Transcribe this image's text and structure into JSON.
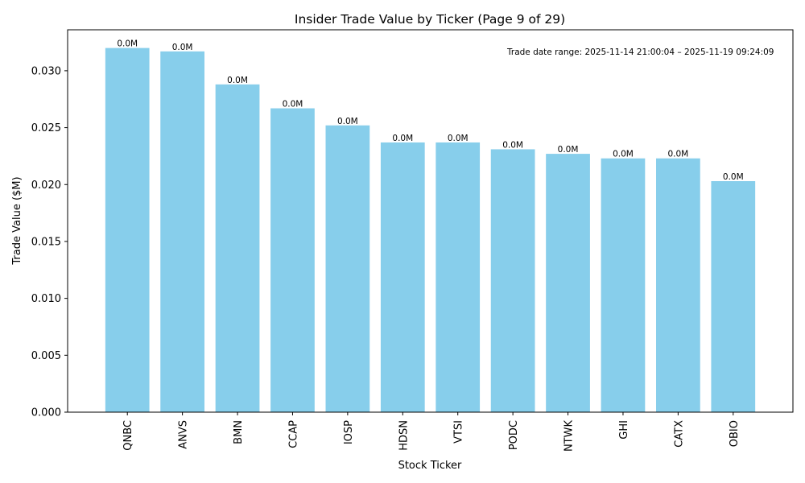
{
  "chart_data": {
    "type": "bar",
    "title": "Insider Trade Value by Ticker (Page 9 of 29)",
    "xlabel": "Stock Ticker",
    "ylabel": "Trade Value ($M)",
    "categories": [
      "QNBC",
      "ANVS",
      "BMN",
      "CCAP",
      "IOSP",
      "HDSN",
      "VTSI",
      "PODC",
      "NTWK",
      "GHI",
      "CATX",
      "OBIO"
    ],
    "values": [
      0.032,
      0.0317,
      0.0288,
      0.0267,
      0.0252,
      0.0237,
      0.0237,
      0.0231,
      0.0227,
      0.0223,
      0.0223,
      0.0203
    ],
    "data_labels": [
      "0.0M",
      "0.0M",
      "0.0M",
      "0.0M",
      "0.0M",
      "0.0M",
      "0.0M",
      "0.0M",
      "0.0M",
      "0.0M",
      "0.0M",
      "0.0M"
    ],
    "ylim": [
      0,
      0.0336
    ],
    "yticks": [
      "0.000",
      "0.005",
      "0.010",
      "0.015",
      "0.020",
      "0.025",
      "0.030"
    ],
    "ytick_values": [
      0,
      0.005,
      0.01,
      0.015,
      0.02,
      0.025,
      0.03
    ],
    "bar_color": "#87ceeb",
    "annotation": "Trade date range: 2025-11-14 21:00:04 – 2025-11-19 09:24:09",
    "grid": false,
    "legend": "none"
  }
}
